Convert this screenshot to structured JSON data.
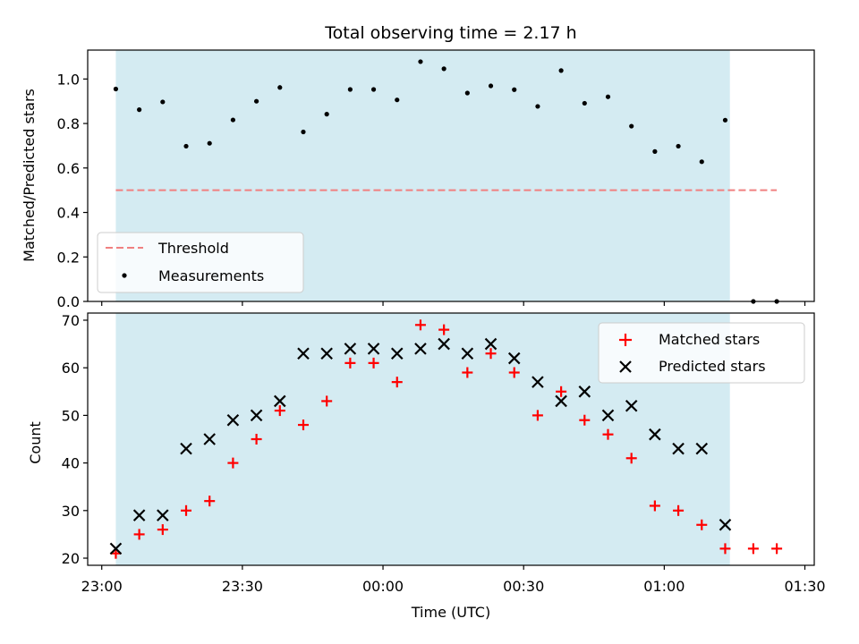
{
  "chart_data": [
    {
      "type": "scatter",
      "title": "Total observing time = 2.17 h",
      "ylabel": "Matched/Predicted stars",
      "ylim": [
        0,
        1.13
      ],
      "yticks": [
        0.0,
        0.2,
        0.4,
        0.6,
        0.8,
        1.0
      ],
      "ytick_labels": [
        "0.0",
        "0.2",
        "0.4",
        "0.6",
        "0.8",
        "1.0"
      ],
      "xlim": [
        "22:57",
        "01:32"
      ],
      "shaded_span": [
        "23:03",
        "01:14"
      ],
      "shaded_color": "#d4ebf2",
      "threshold": {
        "name": "Threshold",
        "value": 0.5,
        "x_range": [
          "23:03",
          "01:24"
        ],
        "color": "#f08080"
      },
      "series": [
        {
          "name": "Measurements",
          "color": "#000000",
          "x": [
            "23:03",
            "23:08",
            "23:13",
            "23:18",
            "23:23",
            "23:28",
            "23:33",
            "23:38",
            "23:43",
            "23:48",
            "23:53",
            "23:58",
            "00:03",
            "00:08",
            "00:13",
            "00:18",
            "00:23",
            "00:28",
            "00:33",
            "00:38",
            "00:43",
            "00:48",
            "00:53",
            "00:58",
            "01:03",
            "01:08",
            "01:13",
            "01:19",
            "01:24"
          ],
          "values": [
            0.955,
            0.862,
            0.897,
            0.698,
            0.711,
            0.816,
            0.9,
            0.962,
            0.762,
            0.842,
            0.953,
            0.953,
            0.906,
            1.078,
            1.046,
            0.937,
            0.969,
            0.952,
            0.877,
            1.038,
            0.891,
            0.92,
            0.788,
            0.674,
            0.698,
            0.628,
            0.815,
            0.0,
            0.0
          ]
        }
      ],
      "legend": {
        "position": "lower-left",
        "entries": [
          "Threshold",
          "Measurements"
        ]
      }
    },
    {
      "type": "scatter",
      "xlabel": "Time (UTC)",
      "ylabel": "Count",
      "ylim": [
        18.5,
        71.5
      ],
      "yticks": [
        20,
        30,
        40,
        50,
        60,
        70
      ],
      "ytick_labels": [
        "20",
        "30",
        "40",
        "50",
        "60",
        "70"
      ],
      "xlim": [
        "22:57",
        "01:32"
      ],
      "xticks": [
        "23:00",
        "23:30",
        "00:00",
        "00:30",
        "01:00",
        "01:30"
      ],
      "xtick_labels": [
        "23:00",
        "23:30",
        "00:00",
        "00:30",
        "01:00",
        "01:30"
      ],
      "shaded_span": [
        "23:03",
        "01:14"
      ],
      "shaded_color": "#d4ebf2",
      "series": [
        {
          "name": "Matched stars",
          "marker": "plus",
          "color": "#ff0000",
          "x": [
            "23:03",
            "23:08",
            "23:13",
            "23:18",
            "23:23",
            "23:28",
            "23:33",
            "23:38",
            "23:43",
            "23:48",
            "23:53",
            "23:58",
            "00:03",
            "00:08",
            "00:13",
            "00:18",
            "00:23",
            "00:28",
            "00:33",
            "00:38",
            "00:43",
            "00:48",
            "00:53",
            "00:58",
            "01:03",
            "01:08",
            "01:13",
            "01:19",
            "01:24"
          ],
          "values": [
            21,
            25,
            26,
            30,
            32,
            40,
            45,
            51,
            48,
            53,
            61,
            61,
            57,
            69,
            68,
            59,
            63,
            59,
            50,
            55,
            49,
            46,
            41,
            31,
            30,
            27,
            22,
            22,
            22
          ]
        },
        {
          "name": "Predicted stars",
          "marker": "x",
          "color": "#000000",
          "x": [
            "23:03",
            "23:08",
            "23:13",
            "23:18",
            "23:23",
            "23:28",
            "23:33",
            "23:38",
            "23:43",
            "23:48",
            "23:53",
            "23:58",
            "00:03",
            "00:08",
            "00:13",
            "00:18",
            "00:23",
            "00:28",
            "00:33",
            "00:38",
            "00:43",
            "00:48",
            "00:53",
            "00:58",
            "01:03",
            "01:08",
            "01:13"
          ],
          "values": [
            22,
            29,
            29,
            43,
            45,
            49,
            50,
            53,
            63,
            63,
            64,
            64,
            63,
            64,
            65,
            63,
            65,
            62,
            57,
            53,
            55,
            50,
            52,
            46,
            43,
            43,
            27
          ]
        }
      ],
      "legend": {
        "position": "top-right",
        "entries": [
          "Matched stars",
          "Predicted stars"
        ]
      }
    }
  ]
}
